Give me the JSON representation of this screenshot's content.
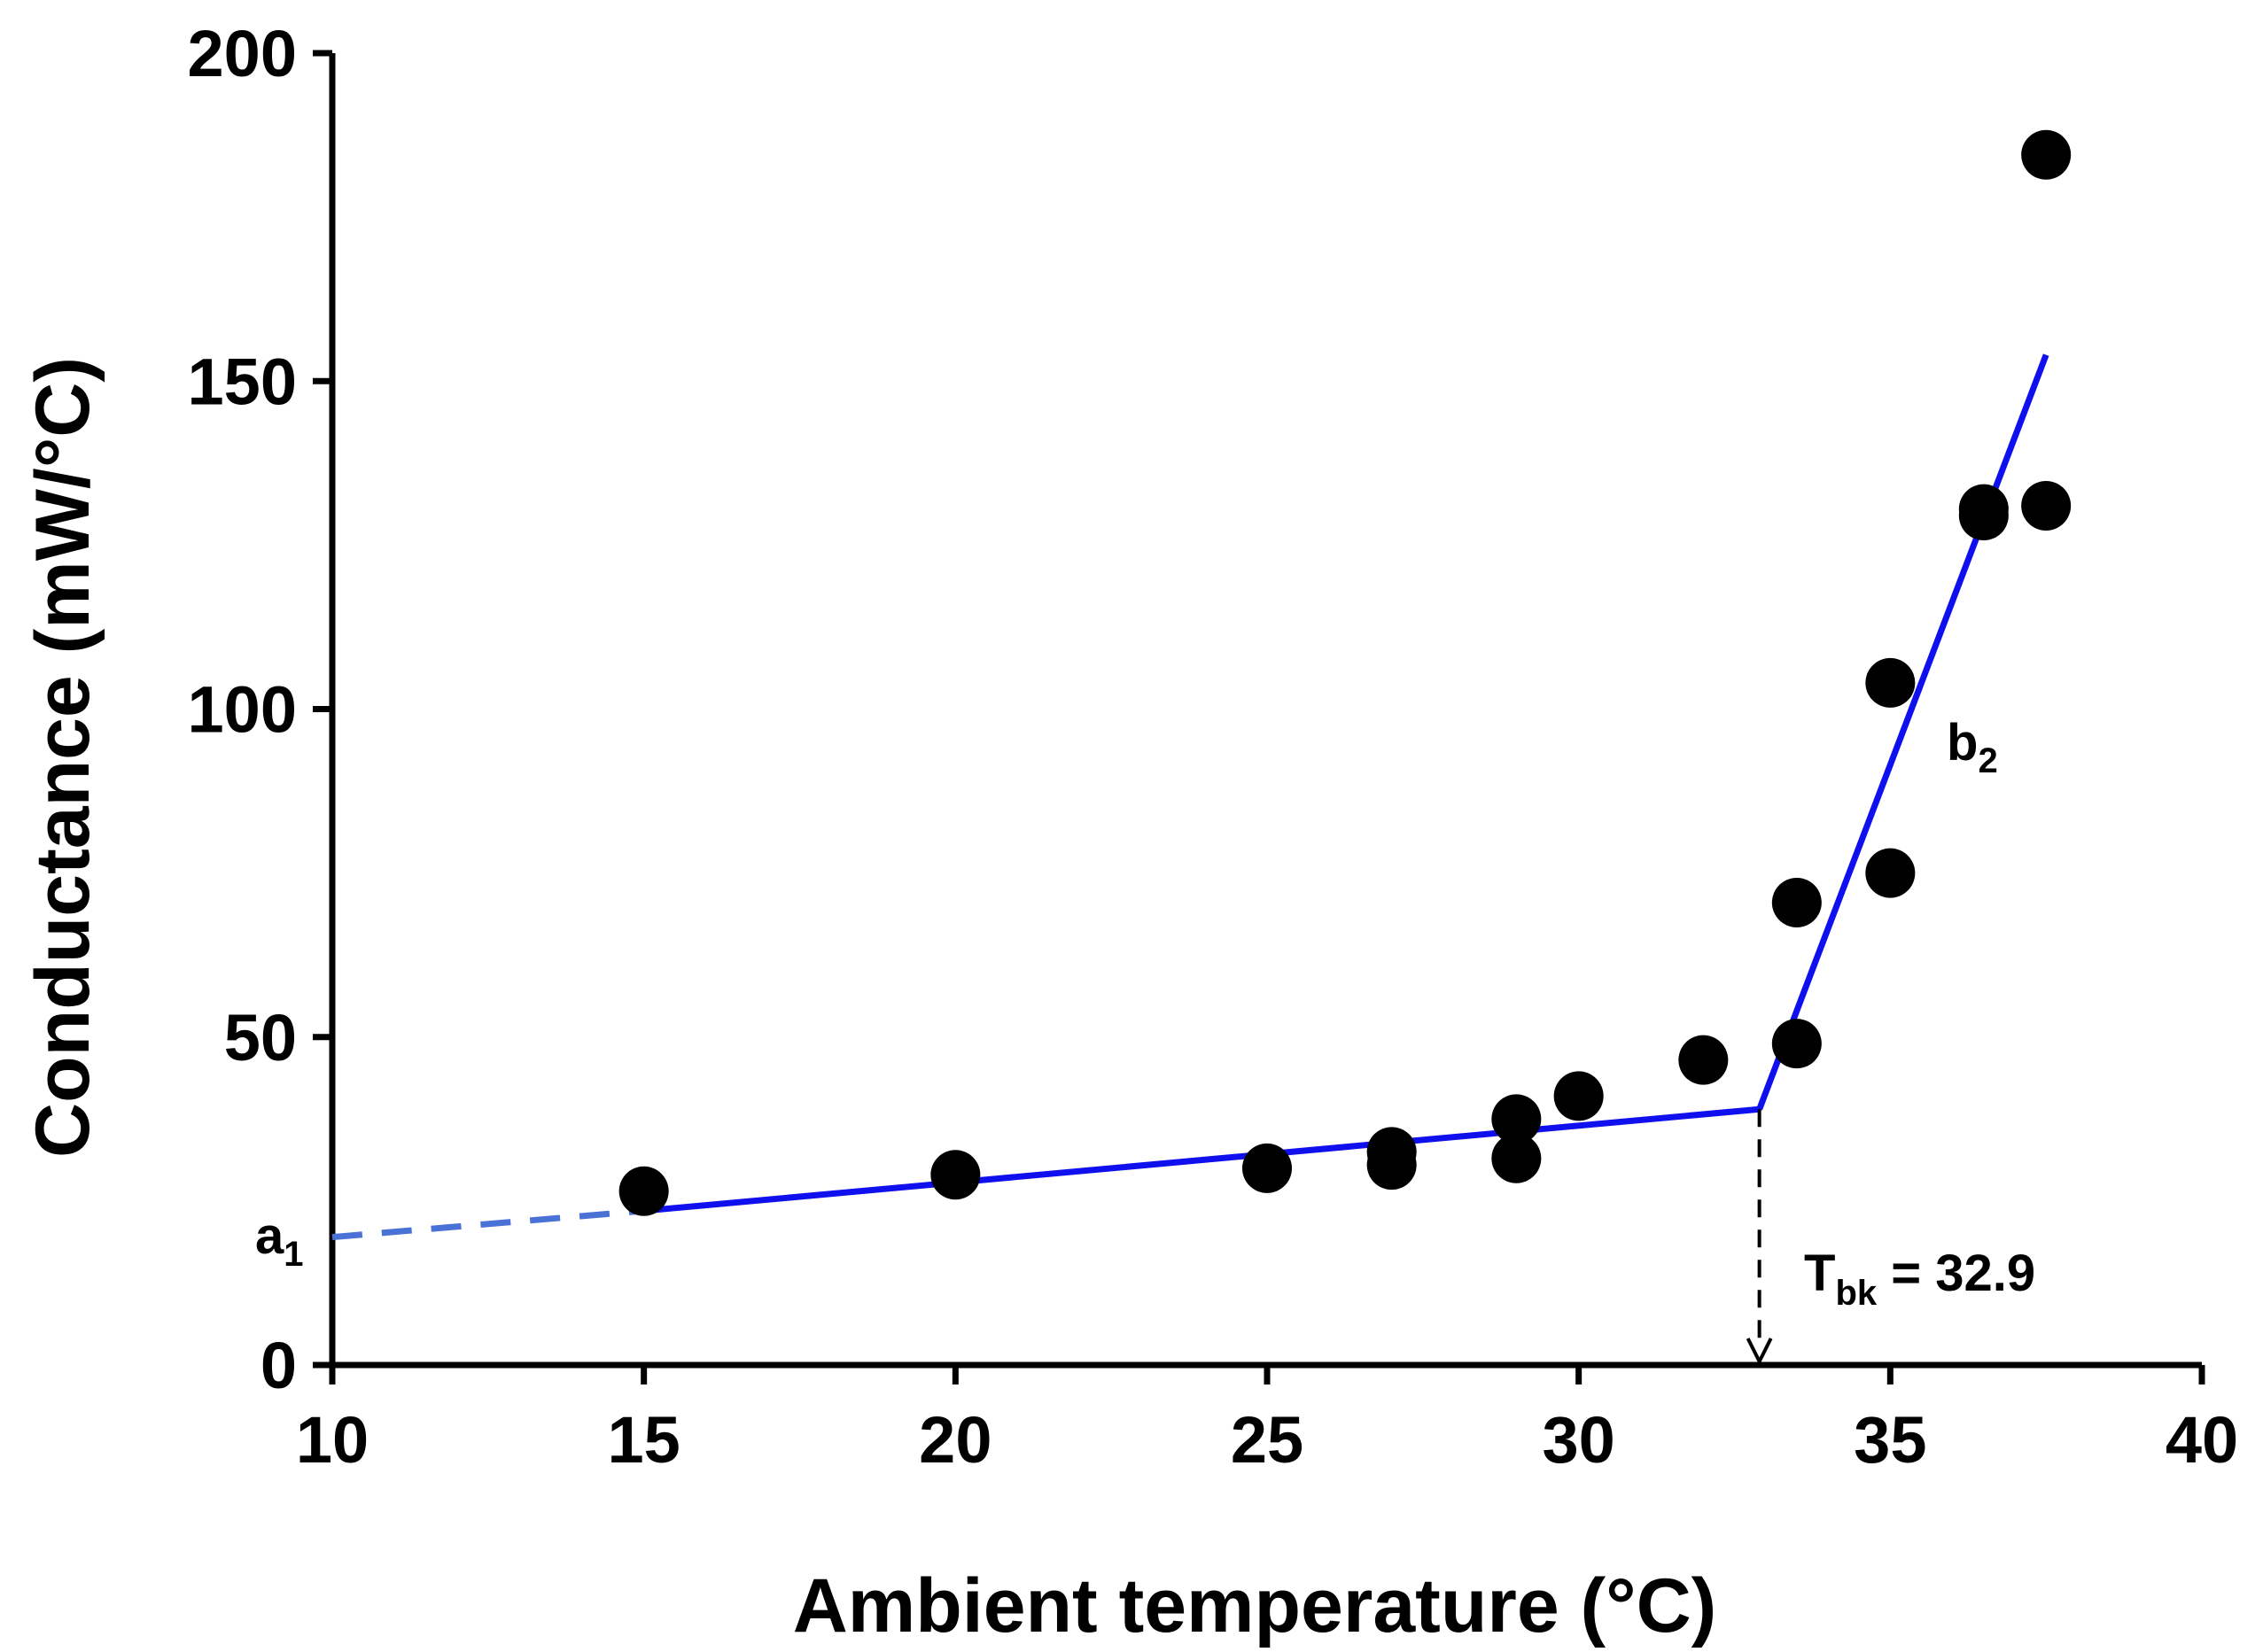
{
  "chart_data": {
    "type": "scatter",
    "title": "",
    "xlabel": "Ambient temperature (°C)",
    "ylabel": "Conductance (mW/°C)",
    "xlim": [
      10,
      40
    ],
    "ylim": [
      0,
      200
    ],
    "xticks": [
      10,
      15,
      20,
      25,
      30,
      35,
      40
    ],
    "yticks": [
      0,
      50,
      100,
      150,
      200
    ],
    "grid": false,
    "series": [
      {
        "name": "observations",
        "marker": "circle",
        "color": "#000000",
        "points": [
          {
            "x": 15,
            "y": 26.5
          },
          {
            "x": 20,
            "y": 29
          },
          {
            "x": 25,
            "y": 30
          },
          {
            "x": 27,
            "y": 30.5
          },
          {
            "x": 27,
            "y": 32.5
          },
          {
            "x": 29,
            "y": 31.5
          },
          {
            "x": 29,
            "y": 37.5
          },
          {
            "x": 30,
            "y": 41
          },
          {
            "x": 32,
            "y": 46.5
          },
          {
            "x": 33.5,
            "y": 49
          },
          {
            "x": 33.5,
            "y": 70.5
          },
          {
            "x": 35,
            "y": 75
          },
          {
            "x": 35,
            "y": 104
          },
          {
            "x": 36.5,
            "y": 129.5
          },
          {
            "x": 36.5,
            "y": 130.5
          },
          {
            "x": 37.5,
            "y": 131
          },
          {
            "x": 37.5,
            "y": 184.5
          }
        ]
      }
    ],
    "fit_lines": [
      {
        "name": "segment-1-extrapolated",
        "style": "dashed",
        "color": "#4a72d6",
        "points": [
          {
            "x": 10,
            "y": 19.5
          },
          {
            "x": 15,
            "y": 23.5
          }
        ]
      },
      {
        "name": "segment-1",
        "style": "solid",
        "color": "#1010ee",
        "points": [
          {
            "x": 15,
            "y": 23.5
          },
          {
            "x": 32.9,
            "y": 39
          }
        ]
      },
      {
        "name": "segment-2",
        "style": "solid",
        "color": "#1010ee",
        "points": [
          {
            "x": 32.9,
            "y": 39
          },
          {
            "x": 37.5,
            "y": 154
          }
        ]
      }
    ],
    "breakpoint_marker": {
      "x": 32.9,
      "y_from": 39,
      "y_to": 0
    },
    "annotations": {
      "a1": {
        "base": "a",
        "sub": "1"
      },
      "b2": {
        "base": "b",
        "sub": "2"
      },
      "tbk": {
        "base": "T",
        "sub": "bk",
        "rest": " = 32.9"
      }
    }
  }
}
